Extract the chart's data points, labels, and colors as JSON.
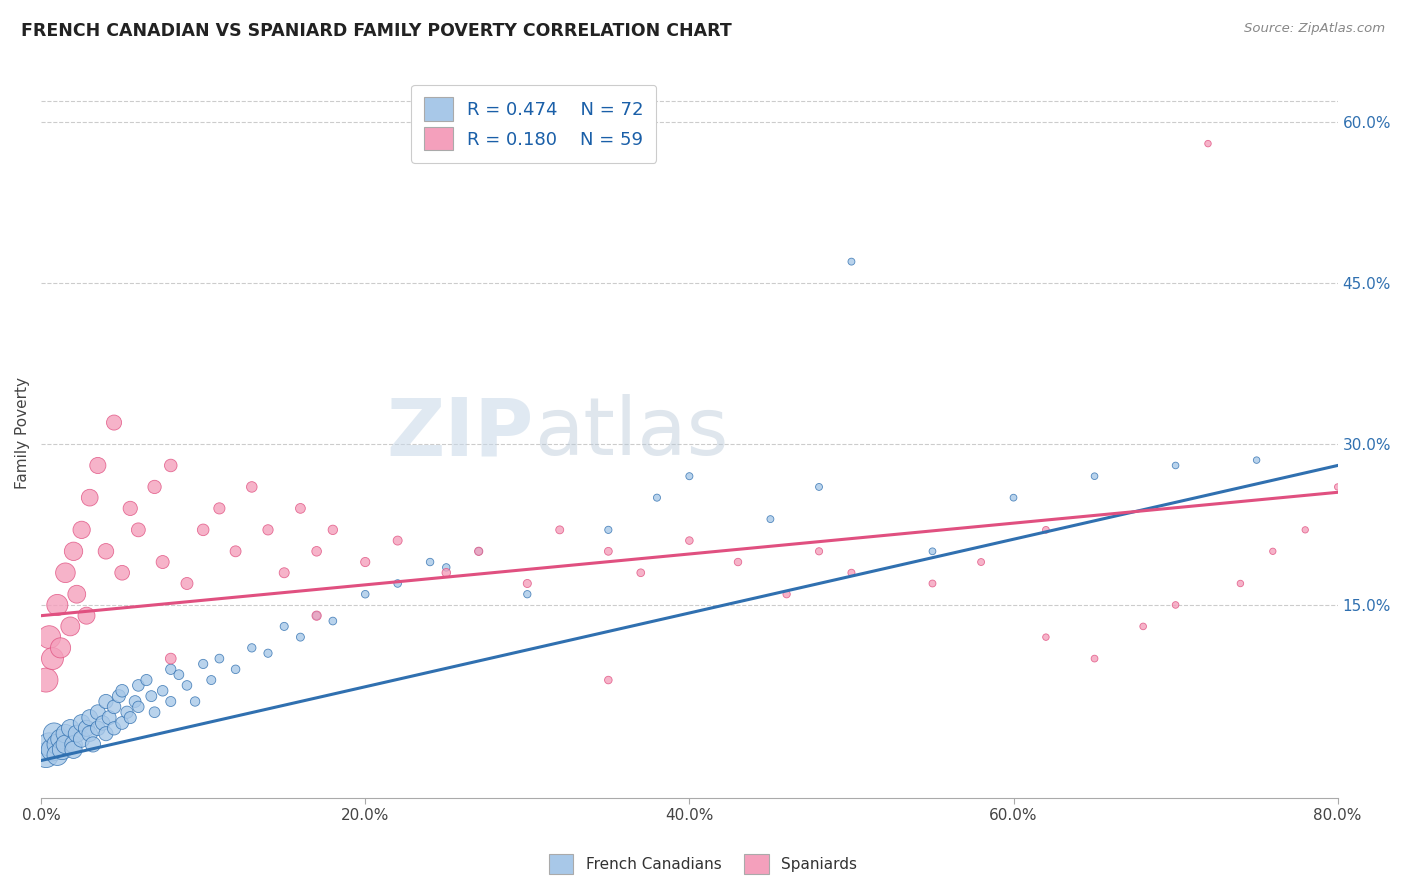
{
  "title": "FRENCH CANADIAN VS SPANIARD FAMILY POVERTY CORRELATION CHART",
  "source": "Source: ZipAtlas.com",
  "xlabel_ticks": [
    "0.0%",
    "20.0%",
    "40.0%",
    "60.0%",
    "80.0%"
  ],
  "xlabel_vals": [
    0,
    20,
    40,
    60,
    80
  ],
  "ylabel": "Family Poverty",
  "ylabel_right_ticks": [
    "15.0%",
    "30.0%",
    "45.0%",
    "60.0%"
  ],
  "ylabel_right_vals": [
    15,
    30,
    45,
    60
  ],
  "xlim": [
    0,
    80
  ],
  "ylim": [
    -3,
    65
  ],
  "blue_color": "#A8C8E8",
  "pink_color": "#F4A0BC",
  "blue_line_color": "#3070B0",
  "pink_line_color": "#E05080",
  "R_blue": 0.474,
  "N_blue": 72,
  "R_pink": 0.18,
  "N_pink": 59,
  "legend_label_blue": "French Canadians",
  "legend_label_pink": "Spaniards",
  "watermark_zip": "ZIP",
  "watermark_atlas": "atlas",
  "blue_line_y_start": 0.5,
  "blue_line_y_end": 28.0,
  "pink_line_y_start": 14.0,
  "pink_line_y_end": 25.5,
  "blue_scatter_x": [
    0.3,
    0.5,
    0.7,
    0.8,
    1.0,
    1.0,
    1.2,
    1.3,
    1.5,
    1.5,
    1.8,
    2.0,
    2.0,
    2.2,
    2.5,
    2.5,
    2.8,
    3.0,
    3.0,
    3.2,
    3.5,
    3.5,
    3.8,
    4.0,
    4.0,
    4.2,
    4.5,
    4.5,
    4.8,
    5.0,
    5.0,
    5.3,
    5.5,
    5.8,
    6.0,
    6.0,
    6.5,
    6.8,
    7.0,
    7.5,
    8.0,
    8.0,
    8.5,
    9.0,
    9.5,
    10.0,
    10.5,
    11.0,
    12.0,
    13.0,
    14.0,
    15.0,
    16.0,
    17.0,
    18.0,
    20.0,
    22.0,
    24.0,
    25.0,
    27.0,
    30.0,
    35.0,
    38.0,
    40.0,
    45.0,
    48.0,
    50.0,
    55.0,
    60.0,
    65.0,
    70.0,
    75.0
  ],
  "blue_scatter_y": [
    1.0,
    2.0,
    1.5,
    3.0,
    2.0,
    1.0,
    2.5,
    1.5,
    3.0,
    2.0,
    3.5,
    2.0,
    1.5,
    3.0,
    4.0,
    2.5,
    3.5,
    4.5,
    3.0,
    2.0,
    5.0,
    3.5,
    4.0,
    6.0,
    3.0,
    4.5,
    5.5,
    3.5,
    6.5,
    4.0,
    7.0,
    5.0,
    4.5,
    6.0,
    7.5,
    5.5,
    8.0,
    6.5,
    5.0,
    7.0,
    9.0,
    6.0,
    8.5,
    7.5,
    6.0,
    9.5,
    8.0,
    10.0,
    9.0,
    11.0,
    10.5,
    13.0,
    12.0,
    14.0,
    13.5,
    16.0,
    17.0,
    19.0,
    18.5,
    20.0,
    16.0,
    22.0,
    25.0,
    27.0,
    23.0,
    26.0,
    47.0,
    20.0,
    25.0,
    27.0,
    28.0,
    28.5
  ],
  "blue_scatter_size": [
    320,
    280,
    260,
    240,
    220,
    220,
    200,
    200,
    180,
    180,
    160,
    160,
    155,
    150,
    145,
    140,
    135,
    130,
    125,
    120,
    115,
    110,
    108,
    105,
    103,
    100,
    95,
    92,
    88,
    85,
    82,
    78,
    75,
    72,
    70,
    68,
    65,
    62,
    60,
    58,
    55,
    52,
    50,
    48,
    46,
    44,
    42,
    40,
    38,
    36,
    35,
    34,
    33,
    32,
    31,
    30,
    30,
    29,
    29,
    28,
    28,
    27,
    26,
    26,
    25,
    25,
    25,
    24,
    24,
    23,
    23,
    22
  ],
  "pink_scatter_x": [
    0.3,
    0.5,
    0.7,
    1.0,
    1.2,
    1.5,
    1.8,
    2.0,
    2.2,
    2.5,
    2.8,
    3.0,
    3.5,
    4.0,
    4.5,
    5.0,
    5.5,
    6.0,
    7.0,
    7.5,
    8.0,
    9.0,
    10.0,
    11.0,
    12.0,
    13.0,
    14.0,
    15.0,
    16.0,
    17.0,
    18.0,
    20.0,
    22.0,
    25.0,
    27.0,
    30.0,
    32.0,
    35.0,
    37.0,
    40.0,
    43.0,
    46.0,
    48.0,
    50.0,
    55.0,
    58.0,
    62.0,
    65.0,
    68.0,
    70.0,
    72.0,
    74.0,
    76.0,
    78.0,
    80.0,
    62.0,
    35.0,
    17.0,
    8.0
  ],
  "pink_scatter_y": [
    8.0,
    12.0,
    10.0,
    15.0,
    11.0,
    18.0,
    13.0,
    20.0,
    16.0,
    22.0,
    14.0,
    25.0,
    28.0,
    20.0,
    32.0,
    18.0,
    24.0,
    22.0,
    26.0,
    19.0,
    28.0,
    17.0,
    22.0,
    24.0,
    20.0,
    26.0,
    22.0,
    18.0,
    24.0,
    20.0,
    22.0,
    19.0,
    21.0,
    18.0,
    20.0,
    17.0,
    22.0,
    20.0,
    18.0,
    21.0,
    19.0,
    16.0,
    20.0,
    18.0,
    17.0,
    19.0,
    22.0,
    10.0,
    13.0,
    15.0,
    58.0,
    17.0,
    20.0,
    22.0,
    26.0,
    12.0,
    8.0,
    14.0,
    10.0
  ],
  "pink_scatter_size": [
    300,
    270,
    250,
    230,
    210,
    200,
    185,
    175,
    165,
    155,
    150,
    145,
    135,
    125,
    118,
    112,
    105,
    100,
    92,
    88,
    82,
    75,
    70,
    65,
    62,
    58,
    55,
    52,
    50,
    48,
    46,
    44,
    42,
    38,
    36,
    34,
    33,
    32,
    31,
    30,
    29,
    28,
    27,
    26,
    25,
    25,
    24,
    24,
    23,
    23,
    22,
    22,
    21,
    21,
    21,
    22,
    30,
    45,
    60
  ]
}
